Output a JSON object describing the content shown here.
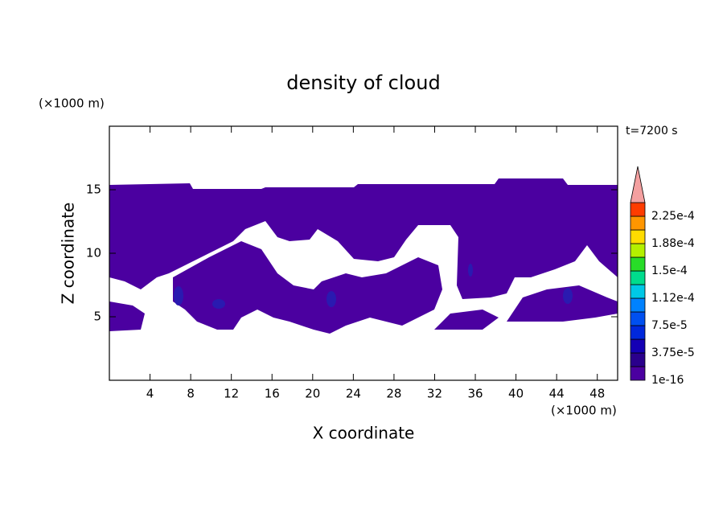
{
  "chart_data": {
    "type": "contour",
    "title": "density of cloud",
    "x_label": "X coordinate",
    "y_label": "Z coordinate",
    "x_unit": "(×1000 m)",
    "y_unit": "(×1000 m)",
    "time_label": "t=7200 s",
    "xlim": [
      0,
      50
    ],
    "ylim": [
      0,
      20
    ],
    "xticks": [
      4,
      8,
      12,
      16,
      20,
      24,
      28,
      32,
      36,
      40,
      44,
      48
    ],
    "yticks": [
      5,
      10,
      15
    ],
    "fill_color": "#4b00a0",
    "levels": [
      {
        "value": 1e-16,
        "label": "1e-16"
      },
      1.875e-05,
      {
        "value": 3.75e-05,
        "label": "3.75e-5"
      },
      5.625e-05,
      {
        "value": 7.5e-05,
        "label": "7.5e-5"
      },
      9.375e-05,
      {
        "value": 0.0001125,
        "label": "1.12e-4"
      },
      0.00013125,
      {
        "value": 0.00015,
        "label": "1.5e-4"
      },
      0.00016875,
      {
        "value": 0.0001875,
        "label": "1.88e-4"
      },
      0.00020625,
      {
        "value": 0.000225,
        "label": "2.25e-4"
      },
      0.00024375
    ],
    "level_colors": [
      "#4b00a0",
      "#2a008c",
      "#1400b4",
      "#0028dc",
      "#0050f0",
      "#0082ff",
      "#00c8e6",
      "#00dc8c",
      "#28dc28",
      "#b4f000",
      "#ffdc00",
      "#ff9600",
      "#ff3c00"
    ],
    "extend_color": "#f4a0a0"
  }
}
